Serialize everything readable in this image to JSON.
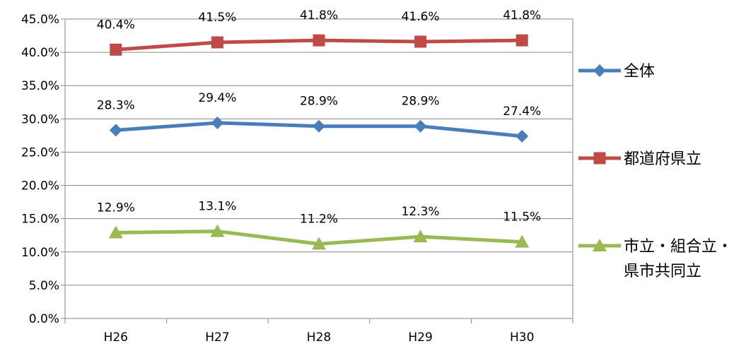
{
  "chart_data": {
    "type": "line",
    "categories": [
      "H26",
      "H27",
      "H28",
      "H29",
      "H30"
    ],
    "ylim": [
      0,
      45
    ],
    "y_ticks": [
      "0.0%",
      "5.0%",
      "10.0%",
      "15.0%",
      "20.0%",
      "25.0%",
      "30.0%",
      "35.0%",
      "40.0%",
      "45.0%"
    ],
    "y_tick_values": [
      0,
      5,
      10,
      15,
      20,
      25,
      30,
      35,
      40,
      45
    ],
    "grid": true,
    "legend_position": "right",
    "series": [
      {
        "name": "全体",
        "name_lines": [
          "全体"
        ],
        "values": [
          28.3,
          29.4,
          28.9,
          28.9,
          27.4
        ],
        "labels": [
          "28.3%",
          "29.4%",
          "28.9%",
          "28.9%",
          "27.4%"
        ],
        "color": "#4a7ebb",
        "marker": "diamond"
      },
      {
        "name": "都道府県立",
        "name_lines": [
          "都道府県立"
        ],
        "values": [
          40.4,
          41.5,
          41.8,
          41.6,
          41.8
        ],
        "labels": [
          "40.4%",
          "41.5%",
          "41.8%",
          "41.6%",
          "41.8%"
        ],
        "color": "#be4b48",
        "marker": "square"
      },
      {
        "name": "市立・組合立・県市共同立",
        "name_lines": [
          "市立・組合立・",
          "県市共同立"
        ],
        "values": [
          12.9,
          13.1,
          11.2,
          12.3,
          11.5
        ],
        "labels": [
          "12.9%",
          "13.1%",
          "11.2%",
          "12.3%",
          "11.5%"
        ],
        "color": "#98b954",
        "marker": "triangle"
      }
    ]
  }
}
